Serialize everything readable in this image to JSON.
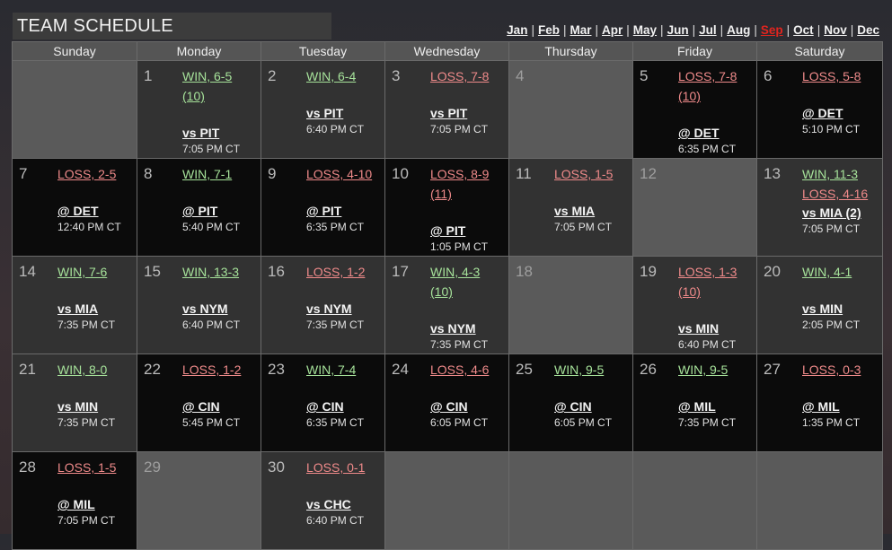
{
  "header": {
    "title": "TEAM SCHEDULE"
  },
  "months": [
    "Jan",
    "Feb",
    "Mar",
    "Apr",
    "May",
    "Jun",
    "Jul",
    "Aug",
    "Sep",
    "Oct",
    "Nov",
    "Dec"
  ],
  "current_month": "Sep",
  "weekdays": [
    "Sunday",
    "Monday",
    "Tuesday",
    "Wednesday",
    "Thursday",
    "Friday",
    "Saturday"
  ],
  "colors": {
    "win": "#a6e29a",
    "loss": "#ef8a8a",
    "current_month": "#e0251f"
  },
  "weeks": [
    [
      {
        "day": "",
        "shade": "gray",
        "games": []
      },
      {
        "day": "1",
        "shade": "dark",
        "games": [
          {
            "result": "WIN, 6-5",
            "extra": "(10)",
            "outcome": "win",
            "opponent": "vs PIT",
            "time": "7:05 PM CT"
          }
        ]
      },
      {
        "day": "2",
        "shade": "dark",
        "games": [
          {
            "result": "WIN, 6-4",
            "outcome": "win",
            "opponent": "vs PIT",
            "time": "6:40 PM CT"
          }
        ]
      },
      {
        "day": "3",
        "shade": "dark",
        "games": [
          {
            "result": "LOSS, 7-8",
            "outcome": "loss",
            "opponent": "vs PIT",
            "time": "7:05 PM CT"
          }
        ]
      },
      {
        "day": "4",
        "shade": "gray",
        "games": []
      },
      {
        "day": "5",
        "shade": "black",
        "games": [
          {
            "result": "LOSS, 7-8",
            "extra": "(10)",
            "outcome": "loss",
            "opponent": "@ DET",
            "time": "6:35 PM CT"
          }
        ]
      },
      {
        "day": "6",
        "shade": "black",
        "games": [
          {
            "result": "LOSS, 5-8",
            "outcome": "loss",
            "opponent": "@ DET",
            "time": "5:10 PM CT"
          }
        ]
      }
    ],
    [
      {
        "day": "7",
        "shade": "black",
        "games": [
          {
            "result": "LOSS, 2-5",
            "outcome": "loss",
            "opponent": "@ DET",
            "time": "12:40 PM CT"
          }
        ]
      },
      {
        "day": "8",
        "shade": "black",
        "games": [
          {
            "result": "WIN, 7-1",
            "outcome": "win",
            "opponent": "@ PIT",
            "time": "5:40 PM CT"
          }
        ]
      },
      {
        "day": "9",
        "shade": "black",
        "games": [
          {
            "result": "LOSS, 4-10",
            "outcome": "loss",
            "opponent": "@ PIT",
            "time": "6:35 PM CT"
          }
        ]
      },
      {
        "day": "10",
        "shade": "black",
        "games": [
          {
            "result": "LOSS, 8-9",
            "extra": "(11)",
            "outcome": "loss",
            "opponent": "@ PIT",
            "time": "1:05 PM CT"
          }
        ]
      },
      {
        "day": "11",
        "shade": "dark",
        "games": [
          {
            "result": "LOSS, 1-5",
            "outcome": "loss",
            "opponent": "vs MIA",
            "time": "7:05 PM CT"
          }
        ]
      },
      {
        "day": "12",
        "shade": "gray",
        "games": []
      },
      {
        "day": "13",
        "shade": "dark",
        "doubleheader": true,
        "games": [
          {
            "result": "WIN, 11-3",
            "outcome": "win"
          },
          {
            "result": "LOSS, 4-16",
            "outcome": "loss"
          }
        ],
        "opponent": "vs MIA (2)",
        "time": "7:05 PM CT"
      }
    ],
    [
      {
        "day": "14",
        "shade": "dark",
        "games": [
          {
            "result": "WIN, 7-6",
            "outcome": "win",
            "opponent": "vs MIA",
            "time": "7:35 PM CT"
          }
        ]
      },
      {
        "day": "15",
        "shade": "dark",
        "games": [
          {
            "result": "WIN, 13-3",
            "outcome": "win",
            "opponent": "vs NYM",
            "time": "6:40 PM CT"
          }
        ]
      },
      {
        "day": "16",
        "shade": "dark",
        "games": [
          {
            "result": "LOSS, 1-2",
            "outcome": "loss",
            "opponent": "vs NYM",
            "time": "7:35 PM CT"
          }
        ]
      },
      {
        "day": "17",
        "shade": "dark",
        "games": [
          {
            "result": "WIN, 4-3",
            "extra": "(10)",
            "outcome": "win",
            "opponent": "vs NYM",
            "time": "7:35 PM CT"
          }
        ]
      },
      {
        "day": "18",
        "shade": "gray",
        "games": []
      },
      {
        "day": "19",
        "shade": "dark",
        "games": [
          {
            "result": "LOSS, 1-3",
            "extra": "(10)",
            "outcome": "loss",
            "opponent": "vs MIN",
            "time": "6:40 PM CT"
          }
        ]
      },
      {
        "day": "20",
        "shade": "dark",
        "games": [
          {
            "result": "WIN, 4-1",
            "outcome": "win",
            "opponent": "vs MIN",
            "time": "2:05 PM CT"
          }
        ]
      }
    ],
    [
      {
        "day": "21",
        "shade": "dark",
        "games": [
          {
            "result": "WIN, 8-0",
            "outcome": "win",
            "opponent": "vs MIN",
            "time": "7:35 PM CT"
          }
        ]
      },
      {
        "day": "22",
        "shade": "black",
        "games": [
          {
            "result": "LOSS, 1-2",
            "outcome": "loss",
            "opponent": "@ CIN",
            "time": "5:45 PM CT"
          }
        ]
      },
      {
        "day": "23",
        "shade": "black",
        "games": [
          {
            "result": "WIN, 7-4",
            "outcome": "win",
            "opponent": "@ CIN",
            "time": "6:35 PM CT"
          }
        ]
      },
      {
        "day": "24",
        "shade": "black",
        "games": [
          {
            "result": "LOSS, 4-6",
            "outcome": "loss",
            "opponent": "@ CIN",
            "time": "6:05 PM CT"
          }
        ]
      },
      {
        "day": "25",
        "shade": "black",
        "games": [
          {
            "result": "WIN, 9-5",
            "outcome": "win",
            "opponent": "@ CIN",
            "time": "6:05 PM CT"
          }
        ]
      },
      {
        "day": "26",
        "shade": "black",
        "games": [
          {
            "result": "WIN, 9-5",
            "outcome": "win",
            "opponent": "@ MIL",
            "time": "7:35 PM CT"
          }
        ]
      },
      {
        "day": "27",
        "shade": "black",
        "games": [
          {
            "result": "LOSS, 0-3",
            "outcome": "loss",
            "opponent": "@ MIL",
            "time": "1:35 PM CT"
          }
        ]
      }
    ],
    [
      {
        "day": "28",
        "shade": "black",
        "games": [
          {
            "result": "LOSS, 1-5",
            "outcome": "loss",
            "opponent": "@ MIL",
            "time": "7:05 PM CT"
          }
        ]
      },
      {
        "day": "29",
        "shade": "gray",
        "games": []
      },
      {
        "day": "30",
        "shade": "dark",
        "games": [
          {
            "result": "LOSS, 0-1",
            "outcome": "loss",
            "opponent": "vs CHC",
            "time": "6:40 PM CT"
          }
        ]
      },
      {
        "day": "",
        "shade": "gray",
        "games": []
      },
      {
        "day": "",
        "shade": "gray",
        "games": []
      },
      {
        "day": "",
        "shade": "gray",
        "games": []
      },
      {
        "day": "",
        "shade": "gray",
        "games": []
      }
    ]
  ]
}
